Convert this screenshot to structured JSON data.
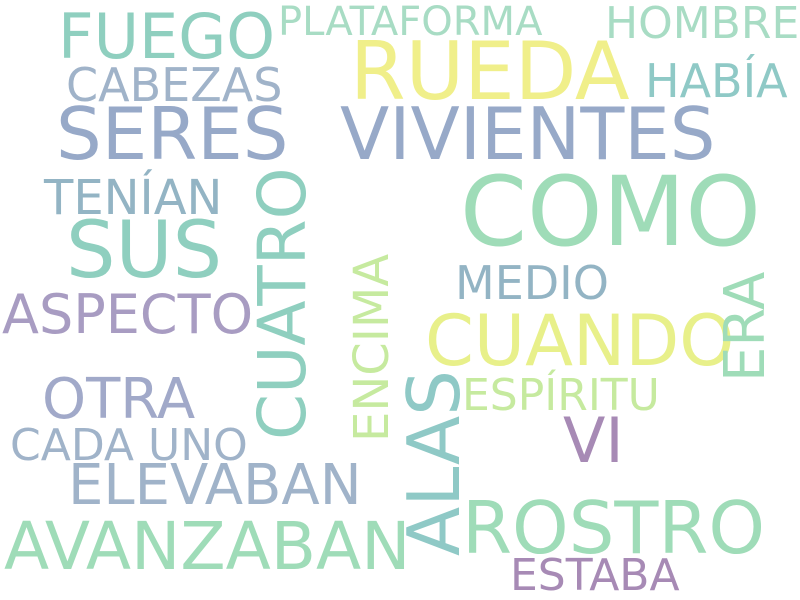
{
  "palette": {
    "teal": "#8fcfbf",
    "mint": "#9fdcb8",
    "slate": "#97a9c8",
    "steel": "#93b4c4",
    "lavender": "#a89cc2",
    "purple": "#a78ab5",
    "yellow": "#f0ef8a",
    "lime": "#dff09a",
    "pale_green": "#c6ea9f",
    "aqua": "#8fc9c6"
  },
  "words": {
    "fuego": "FUEGO",
    "plataforma": "PLATAFORMA",
    "hombre": "HOMBRE",
    "rueda": "RUEDA",
    "cabezas": "CABEZAS",
    "habia": "HABÍA",
    "seres": "SERES",
    "vivientes": "VIVIENTES",
    "tenian": "TENÍAN",
    "como": "COMO",
    "sus": "SUS",
    "cuatro": "CUATRO",
    "encima": "ENCIMA",
    "medio": "MEDIO",
    "aspecto": "ASPECTO",
    "cuando": "CUANDO",
    "era": "ERA",
    "otra": "OTRA",
    "alas": "ALAS",
    "espiritu": "ESPÍRITU",
    "cada_uno": "CADA UNO",
    "vi": "VI",
    "elevaban": "ELEVABAN",
    "rostro": "ROSTRO",
    "avanzaban": "AVANZABAN",
    "estaba": "ESTABA"
  }
}
